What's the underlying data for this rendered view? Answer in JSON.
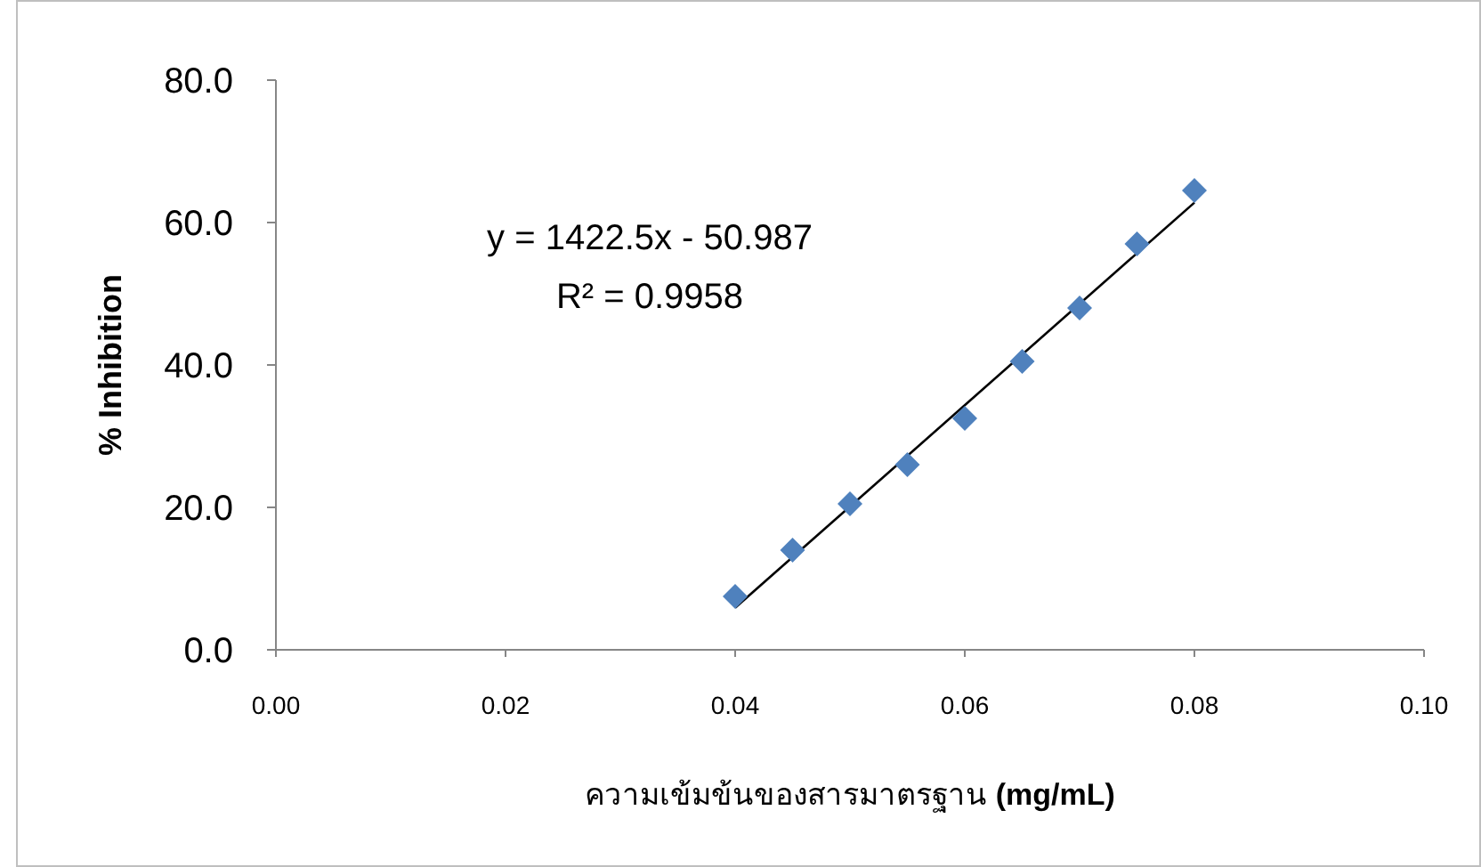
{
  "chart_data": {
    "type": "scatter",
    "xlabel": "ความเข้มข้นของสารมาตรฐาน **(mg/mL)**",
    "ylabel": "% Inhibition",
    "marker": "diamond",
    "grid": false,
    "xlim": [
      0,
      0.1
    ],
    "xticks": [
      {
        "value": 0,
        "label": "0.00"
      },
      {
        "value": 0.02,
        "label": "0.02"
      },
      {
        "value": 0.04,
        "label": "0.04"
      },
      {
        "value": 0.06,
        "label": "0.06"
      },
      {
        "value": 0.08,
        "label": "0.08"
      },
      {
        "value": 0.1,
        "label": "0.10"
      }
    ],
    "ylim": [
      0,
      80
    ],
    "yticks": [
      {
        "value": 0,
        "label": "0.0"
      },
      {
        "value": 20,
        "label": "20.0"
      },
      {
        "value": 40,
        "label": "40.0"
      },
      {
        "value": 60,
        "label": "60.0"
      },
      {
        "value": 80,
        "label": "80.0"
      }
    ],
    "series": [
      {
        "type": "line",
        "color": "#000000",
        "marker": "none",
        "x": [
          0.04,
          0.08
        ],
        "values": [
          5.9,
          62.8
        ]
      },
      {
        "color": "#4f81bd",
        "x": [
          0.04,
          0.045,
          0.05,
          0.055,
          0.06,
          0.065,
          0.07,
          0.075,
          0.08
        ],
        "values": [
          7.5,
          14,
          20.5,
          26,
          32.5,
          40.5,
          48,
          57,
          64.5
        ]
      }
    ],
    "annotations": [
      "y = 1422.5x - 50.987",
      "R² = 0.9958"
    ]
  }
}
